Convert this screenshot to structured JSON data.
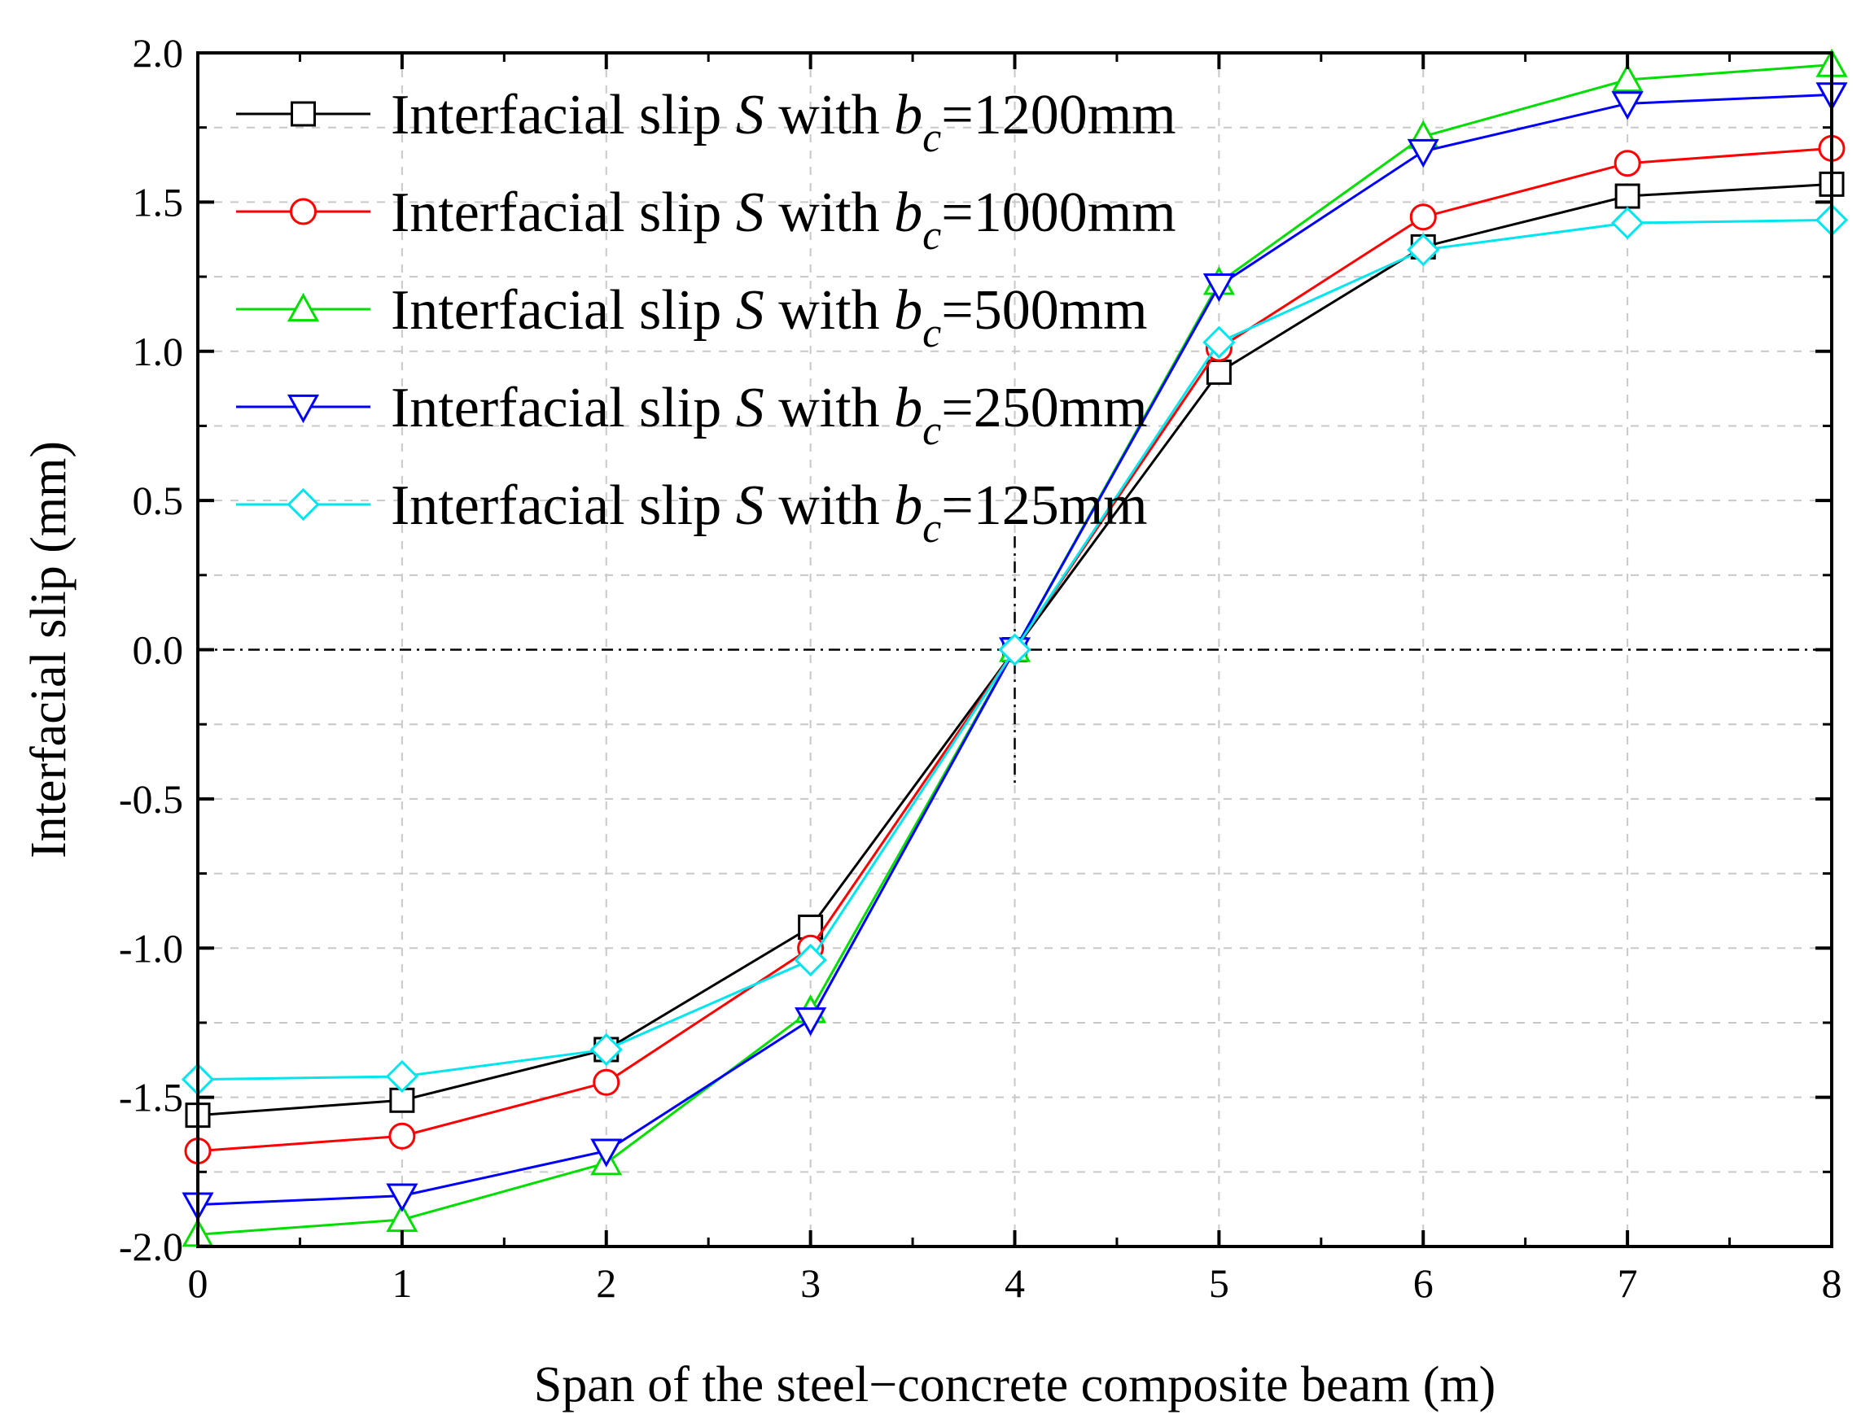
{
  "chart_data": {
    "type": "line",
    "title": "",
    "xlabel": "Span of the steel−concrete composite beam (m)",
    "ylabel": "Interfacial slip (mm)",
    "xlim": [
      0,
      8
    ],
    "ylim": [
      -2.0,
      2.0
    ],
    "x_ticks": [
      "0",
      "1",
      "2",
      "3",
      "4",
      "5",
      "6",
      "7",
      "8"
    ],
    "y_ticks": [
      "2.0",
      "1.5",
      "1.0",
      "0.5",
      "0.0",
      "-0.5",
      "-1.0",
      "-1.5",
      "-2.0"
    ],
    "grid": true,
    "legend_position": "top-left",
    "reference_lines": [
      "horizontal dash-dot line at y = 0.0",
      "vertical dash-dot line at x = 4"
    ],
    "x": [
      0,
      1,
      2,
      3,
      4,
      5,
      6,
      7,
      8
    ],
    "series": [
      {
        "name": "Interfacial slip S with bc=1200mm",
        "legend": {
          "prefix": "Interfacial slip ",
          "variable": "S",
          "mid": " with ",
          "symbol": "b",
          "subscript": "c",
          "suffix": "=1200mm"
        },
        "color": "#000000",
        "marker": "square",
        "values": [
          -1.56,
          -1.51,
          -1.34,
          -0.93,
          0.0,
          0.93,
          1.35,
          1.52,
          1.56
        ]
      },
      {
        "name": "Interfacial slip S with bc=1000mm",
        "legend": {
          "prefix": "Interfacial slip ",
          "variable": "S",
          "mid": " with ",
          "symbol": "b",
          "subscript": "c",
          "suffix": "=1000mm"
        },
        "color": "#ff0000",
        "marker": "circle",
        "values": [
          -1.68,
          -1.63,
          -1.45,
          -1.0,
          0.0,
          1.01,
          1.45,
          1.63,
          1.68
        ]
      },
      {
        "name": "Interfacial slip S with bc=500mm",
        "legend": {
          "prefix": "Interfacial slip ",
          "variable": "S",
          "mid": " with ",
          "symbol": "b",
          "subscript": "c",
          "suffix": "=500mm"
        },
        "color": "#00dd00",
        "marker": "triangle-up",
        "values": [
          -1.96,
          -1.91,
          -1.72,
          -1.21,
          0.0,
          1.23,
          1.72,
          1.91,
          1.96
        ]
      },
      {
        "name": "Interfacial slip S with bc=250mm",
        "legend": {
          "prefix": "Interfacial slip ",
          "variable": "S",
          "mid": " with ",
          "symbol": "b",
          "subscript": "c",
          "suffix": "=250mm"
        },
        "color": "#0000ff",
        "marker": "triangle-down",
        "values": [
          -1.86,
          -1.83,
          -1.68,
          -1.24,
          0.0,
          1.22,
          1.67,
          1.83,
          1.86
        ]
      },
      {
        "name": "Interfacial slip S with bc=125mm",
        "legend": {
          "prefix": "Interfacial slip ",
          "variable": "S",
          "mid": " with ",
          "symbol": "b",
          "subscript": "c",
          "suffix": "=125mm"
        },
        "color": "#00e5ee",
        "marker": "diamond",
        "values": [
          -1.44,
          -1.43,
          -1.34,
          -1.04,
          0.0,
          1.03,
          1.34,
          1.43,
          1.44
        ]
      }
    ]
  }
}
